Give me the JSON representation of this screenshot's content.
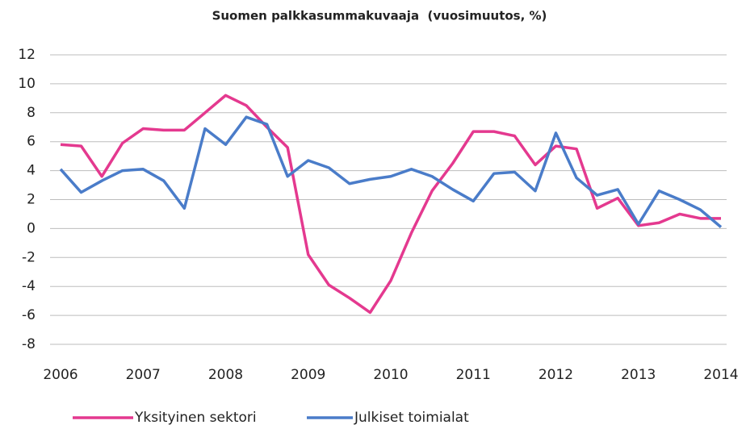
{
  "chart_data": {
    "type": "line",
    "title": "Suomen palkkasummakuvaaja  (vuosimuutos, %)",
    "x": [
      2006,
      2006.25,
      2006.5,
      2006.75,
      2007,
      2007.25,
      2007.5,
      2007.75,
      2008,
      2008.25,
      2008.5,
      2008.75,
      2009,
      2009.25,
      2009.5,
      2009.75,
      2010,
      2010.25,
      2010.5,
      2010.75,
      2011,
      2011.25,
      2011.5,
      2011.75,
      2012,
      2012.25,
      2012.5,
      2012.75,
      2013,
      2013.25,
      2013.5,
      2013.75,
      2014
    ],
    "series": [
      {
        "name": "Yksityinen sektori",
        "color": "#e4398f",
        "values": [
          5.8,
          5.7,
          3.6,
          5.9,
          6.9,
          6.8,
          6.8,
          8.0,
          9.2,
          8.5,
          7.0,
          5.6,
          -1.8,
          -3.9,
          -4.8,
          -5.8,
          -3.6,
          -0.3,
          2.6,
          4.5,
          6.7,
          6.7,
          6.4,
          4.4,
          5.7,
          5.5,
          1.4,
          2.1,
          0.2,
          0.4,
          1.0,
          0.7,
          0.7
        ]
      },
      {
        "name": "Julkiset toimialat",
        "color": "#4a7cc9",
        "values": [
          4.1,
          2.5,
          3.3,
          4.0,
          4.1,
          3.3,
          1.4,
          6.9,
          5.8,
          7.7,
          7.2,
          3.6,
          4.7,
          4.2,
          3.1,
          3.4,
          3.6,
          4.1,
          3.6,
          2.7,
          1.9,
          3.8,
          3.9,
          2.6,
          6.6,
          3.5,
          2.3,
          2.7,
          0.3,
          2.6,
          2.0,
          1.3,
          0.1
        ]
      }
    ],
    "xlim": [
      2006,
      2014
    ],
    "xticks": [
      2006,
      2007,
      2008,
      2009,
      2010,
      2011,
      2012,
      2013,
      2014
    ],
    "ylim": [
      -8,
      12
    ],
    "yticks": [
      -8,
      -6,
      -4,
      -2,
      0,
      2,
      4,
      6,
      8,
      10,
      12
    ],
    "grid": true,
    "legend": "bottom"
  }
}
